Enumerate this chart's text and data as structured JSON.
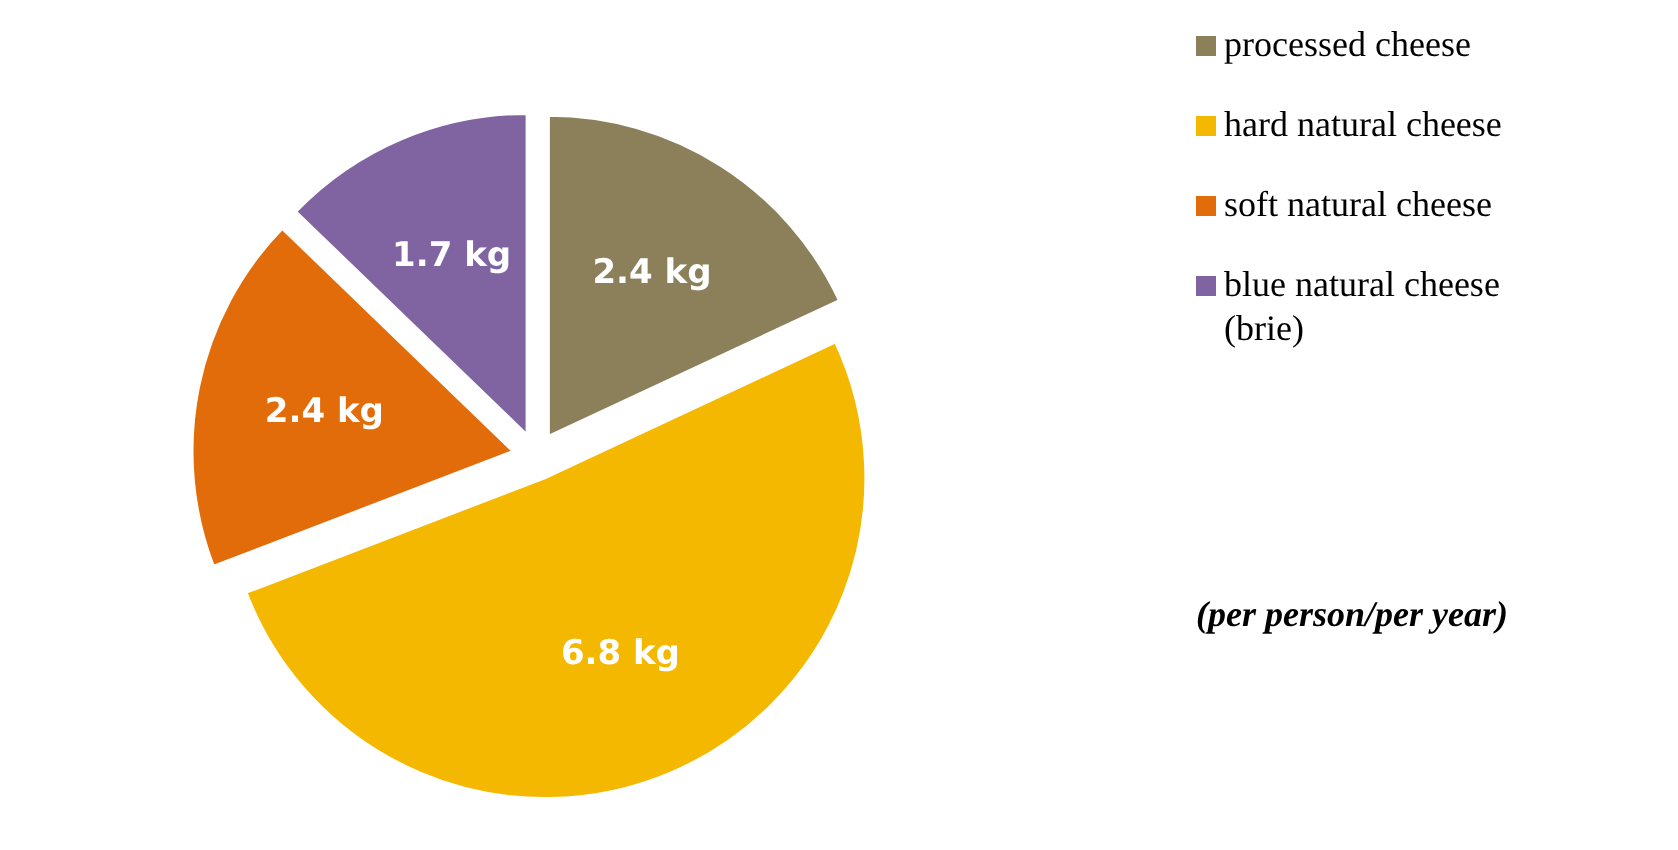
{
  "chart_data": {
    "type": "pie",
    "categories": [
      "processed cheese",
      "hard natural cheese",
      "soft natural cheese",
      "blue natural cheese (brie)"
    ],
    "values": [
      2.4,
      6.8,
      2.4,
      1.7
    ],
    "colors": [
      "#8b8059",
      "#f5b800",
      "#e36c0a",
      "#8064a2"
    ],
    "value_labels": [
      "2.4 kg",
      "6.8 kg",
      "2.4 kg",
      "1.7 kg"
    ],
    "legend": "right",
    "annotations": [
      "(per person/per year)"
    ]
  }
}
